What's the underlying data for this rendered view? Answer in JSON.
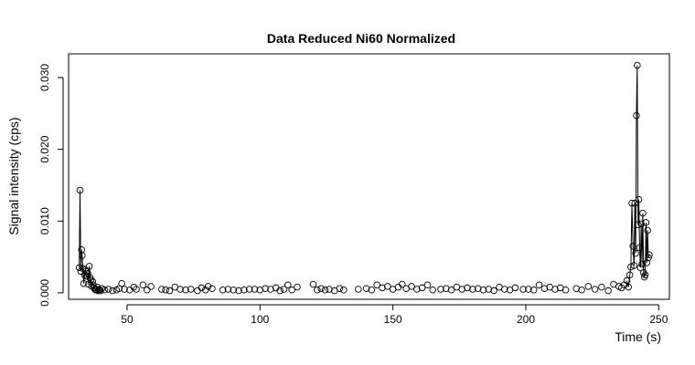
{
  "chart_data": {
    "type": "scatter",
    "title": "Data Reduced Ni60 Normalized",
    "xlabel": "Time (s)",
    "ylabel": "Signal intensity (cps)",
    "xlim": [
      28,
      254
    ],
    "ylim": [
      -0.0009,
      0.0333
    ],
    "xticks": [
      50,
      100,
      150,
      200,
      250
    ],
    "yticks": [
      0.0,
      0.01,
      0.02,
      0.03
    ],
    "xtick_labels": [
      "50",
      "100",
      "150",
      "200",
      "250"
    ],
    "ytick_labels": [
      "0.000",
      "0.010",
      "0.020",
      "0.030"
    ],
    "grid": false,
    "legend": "none",
    "marker": "open-circle",
    "connected_regions": [
      [
        32,
        40
      ],
      [
        238,
        247
      ]
    ],
    "x": [
      32.0,
      32.3,
      32.6,
      32.9,
      33.1,
      33.4,
      33.7,
      34.0,
      34.3,
      34.6,
      34.9,
      35.2,
      35.5,
      35.8,
      36.1,
      36.4,
      36.7,
      37.0,
      37.3,
      37.6,
      37.9,
      38.2,
      38.5,
      38.8,
      39.1,
      39.4,
      39.7,
      40.0,
      40.5,
      41.5,
      43.0,
      44.5,
      46.0,
      47.0,
      48.0,
      49.0,
      51.0,
      52.5,
      53.5,
      56.0,
      57.5,
      59.0,
      63.0,
      64.5,
      66.0,
      68.0,
      70.0,
      72.0,
      74.0,
      76.5,
      78.0,
      79.5,
      80.5,
      82.0,
      86.0,
      88.0,
      90.0,
      92.0,
      94.0,
      96.0,
      98.0,
      100.0,
      102.0,
      104.0,
      106.0,
      107.5,
      109.0,
      110.5,
      112.0,
      114.0,
      120.0,
      121.5,
      123.0,
      124.5,
      126.0,
      128.0,
      130.0,
      131.5,
      137.0,
      140.0,
      142.0,
      144.0,
      146.0,
      148.0,
      150.0,
      152.0,
      153.5,
      155.0,
      157.0,
      159.0,
      161.0,
      163.0,
      165.0,
      168.0,
      170.0,
      172.0,
      174.0,
      176.0,
      178.0,
      180.0,
      182.0,
      184.0,
      186.0,
      188.0,
      190.0,
      192.0,
      194.0,
      196.0,
      199.0,
      201.0,
      203.0,
      205.0,
      207.0,
      209.0,
      211.0,
      213.0,
      215.0,
      219.0,
      221.0,
      223.5,
      226.0,
      228.5,
      231.0,
      233.0,
      235.0,
      236.0,
      237.0,
      238.0,
      238.6,
      239.1,
      239.5,
      239.9,
      240.3,
      240.7,
      241.0,
      241.3,
      241.6,
      241.9,
      242.2,
      242.5,
      242.8,
      243.1,
      243.4,
      243.7,
      244.0,
      244.3,
      244.6,
      244.9,
      245.2,
      245.5,
      245.8,
      246.1,
      246.4
    ],
    "y": [
      0.0035,
      0.0143,
      0.003,
      0.006,
      0.0052,
      0.0034,
      0.0013,
      0.0025,
      0.0032,
      0.003,
      0.0023,
      0.0027,
      0.0012,
      0.0037,
      0.0021,
      0.0018,
      0.0009,
      0.0016,
      0.0011,
      0.0007,
      0.0005,
      0.0004,
      0.0004,
      0.0008,
      0.0003,
      0.0005,
      0.0004,
      0.0003,
      0.0006,
      0.0004,
      0.0005,
      0.0003,
      0.0004,
      0.0006,
      0.0013,
      0.0005,
      0.0004,
      0.0008,
      0.0005,
      0.0011,
      0.0004,
      0.0009,
      0.0005,
      0.0004,
      0.0003,
      0.0008,
      0.0005,
      0.0004,
      0.0005,
      0.0003,
      0.0007,
      0.0004,
      0.0009,
      0.0006,
      0.0004,
      0.0005,
      0.0004,
      0.0003,
      0.0004,
      0.0005,
      0.0005,
      0.0004,
      0.0006,
      0.0005,
      0.0007,
      0.0003,
      0.0005,
      0.0011,
      0.0004,
      0.0008,
      0.0012,
      0.0004,
      0.0006,
      0.0004,
      0.0005,
      0.0003,
      0.0006,
      0.0004,
      0.0005,
      0.0006,
      0.0004,
      0.0011,
      0.0007,
      0.0009,
      0.0005,
      0.0008,
      0.0012,
      0.0006,
      0.0009,
      0.0005,
      0.0007,
      0.0011,
      0.0004,
      0.0005,
      0.0006,
      0.0004,
      0.0008,
      0.0005,
      0.0007,
      0.0005,
      0.0006,
      0.0004,
      0.0005,
      0.0003,
      0.0008,
      0.0005,
      0.0004,
      0.0007,
      0.0005,
      0.0005,
      0.0004,
      0.0011,
      0.0006,
      0.0008,
      0.0005,
      0.0007,
      0.0004,
      0.0006,
      0.0004,
      0.0009,
      0.0005,
      0.0008,
      0.0003,
      0.0012,
      0.0009,
      0.0007,
      0.0011,
      0.0017,
      0.0008,
      0.0025,
      0.0036,
      0.0125,
      0.0065,
      0.0038,
      0.0125,
      0.0055,
      0.0247,
      0.0317,
      0.0095,
      0.013,
      0.0063,
      0.0035,
      0.0096,
      0.004,
      0.0111,
      0.0028,
      0.0022,
      0.0025,
      0.0098,
      0.0042,
      0.0087,
      0.0049,
      0.0053
    ]
  }
}
